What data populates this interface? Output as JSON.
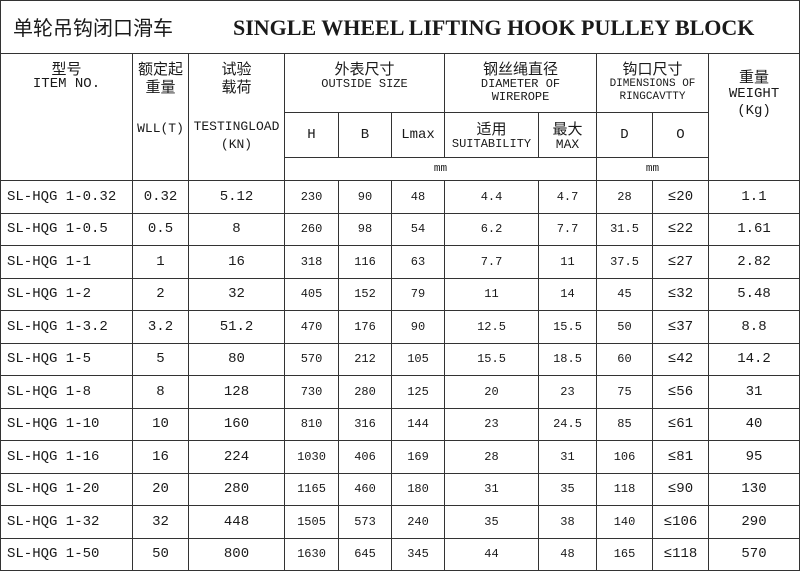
{
  "title": {
    "zh": "单轮吊钩闭口滑车",
    "en": "SINGLE WHEEL LIFTING HOOK PULLEY BLOCK"
  },
  "headers": {
    "item": {
      "zh": "型号",
      "en": "ITEM NO."
    },
    "wll": {
      "zh": "额定起重量",
      "en": "WLL(T)"
    },
    "test": {
      "zh": "试验载荷",
      "en": "TESTINGLOAD(KN)"
    },
    "outside": {
      "zh": "外表尺寸",
      "en": "OUTSIDE SIZE",
      "h": "H",
      "b": "B",
      "lmax": "Lmax"
    },
    "wire": {
      "zh": "钢丝绳直径",
      "en": "DIAMETER OF WIREROPE",
      "suit_zh": "适用",
      "suit_en": "SUITABILITY",
      "max_zh": "最大",
      "max_en": "MAX"
    },
    "ring": {
      "zh": "钩口尺寸",
      "en": "DIMENSIONS OF RINGCAVTTY",
      "d": "D",
      "o": "O"
    },
    "weight": {
      "zh": "重量",
      "en": "WEIGHT",
      "unit": "(Kg)"
    },
    "mm1": "mm",
    "mm2": "mm"
  },
  "rows": [
    [
      "SL-HQG 1-0.32",
      "0.32",
      "5.12",
      "230",
      "90",
      "48",
      "4.4",
      "4.7",
      "28",
      "≤20",
      "1.1"
    ],
    [
      "SL-HQG 1-0.5",
      "0.5",
      "8",
      "260",
      "98",
      "54",
      "6.2",
      "7.7",
      "31.5",
      "≤22",
      "1.61"
    ],
    [
      "SL-HQG 1-1",
      "1",
      "16",
      "318",
      "116",
      "63",
      "7.7",
      "11",
      "37.5",
      "≤27",
      "2.82"
    ],
    [
      "SL-HQG 1-2",
      "2",
      "32",
      "405",
      "152",
      "79",
      "11",
      "14",
      "45",
      "≤32",
      "5.48"
    ],
    [
      "SL-HQG 1-3.2",
      "3.2",
      "51.2",
      "470",
      "176",
      "90",
      "12.5",
      "15.5",
      "50",
      "≤37",
      "8.8"
    ],
    [
      "SL-HQG 1-5",
      "5",
      "80",
      "570",
      "212",
      "105",
      "15.5",
      "18.5",
      "60",
      "≤42",
      "14.2"
    ],
    [
      "SL-HQG 1-8",
      "8",
      "128",
      "730",
      "280",
      "125",
      "20",
      "23",
      "75",
      "≤56",
      "31"
    ],
    [
      "SL-HQG 1-10",
      "10",
      "160",
      "810",
      "316",
      "144",
      "23",
      "24.5",
      "85",
      "≤61",
      "40"
    ],
    [
      "SL-HQG 1-16",
      "16",
      "224",
      "1030",
      "406",
      "169",
      "28",
      "31",
      "106",
      "≤81",
      "95"
    ],
    [
      "SL-HQG 1-20",
      "20",
      "280",
      "1165",
      "460",
      "180",
      "31",
      "35",
      "118",
      "≤90",
      "130"
    ],
    [
      "SL-HQG 1-32",
      "32",
      "448",
      "1505",
      "573",
      "240",
      "35",
      "38",
      "140",
      "≤106",
      "290"
    ],
    [
      "SL-HQG 1-50",
      "50",
      "800",
      "1630",
      "645",
      "345",
      "44",
      "48",
      "165",
      "≤118",
      "570"
    ]
  ]
}
